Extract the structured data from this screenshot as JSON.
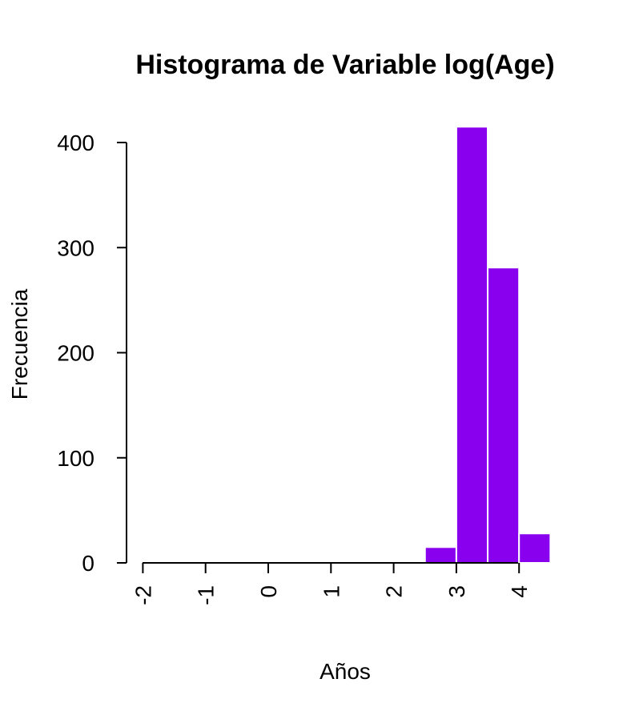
{
  "chart_data": {
    "type": "bar",
    "title": "Histograma de Variable log(Age)",
    "xlabel": "Años",
    "ylabel": "Frecuencia",
    "bar_color": "#8800EE",
    "bar_border_color": "#FFFFFF",
    "bins": [
      {
        "x0": -2.0,
        "x1": -1.5,
        "count": 0
      },
      {
        "x0": -1.5,
        "x1": -1.0,
        "count": 0
      },
      {
        "x0": -1.0,
        "x1": -0.5,
        "count": 1
      },
      {
        "x0": -0.5,
        "x1": 0.0,
        "count": 0
      },
      {
        "x0": 0.0,
        "x1": 0.5,
        "count": 0
      },
      {
        "x0": 0.5,
        "x1": 1.0,
        "count": 0
      },
      {
        "x0": 1.0,
        "x1": 1.5,
        "count": 0
      },
      {
        "x0": 1.5,
        "x1": 2.0,
        "count": 0
      },
      {
        "x0": 2.0,
        "x1": 2.5,
        "count": 0
      },
      {
        "x0": 2.5,
        "x1": 3.0,
        "count": 15
      },
      {
        "x0": 3.0,
        "x1": 3.5,
        "count": 415
      },
      {
        "x0": 3.5,
        "x1": 4.0,
        "count": 281
      },
      {
        "x0": 4.0,
        "x1": 4.5,
        "count": 28
      }
    ],
    "xlim": [
      -2.25,
      4.5
    ],
    "ylim": [
      0,
      415
    ],
    "x_ticks": [
      -2,
      -1,
      0,
      1,
      2,
      3,
      4
    ],
    "y_ticks": [
      0,
      100,
      200,
      300,
      400
    ],
    "x_tick_rotation": "vertical",
    "grid": false,
    "legend": "none"
  }
}
